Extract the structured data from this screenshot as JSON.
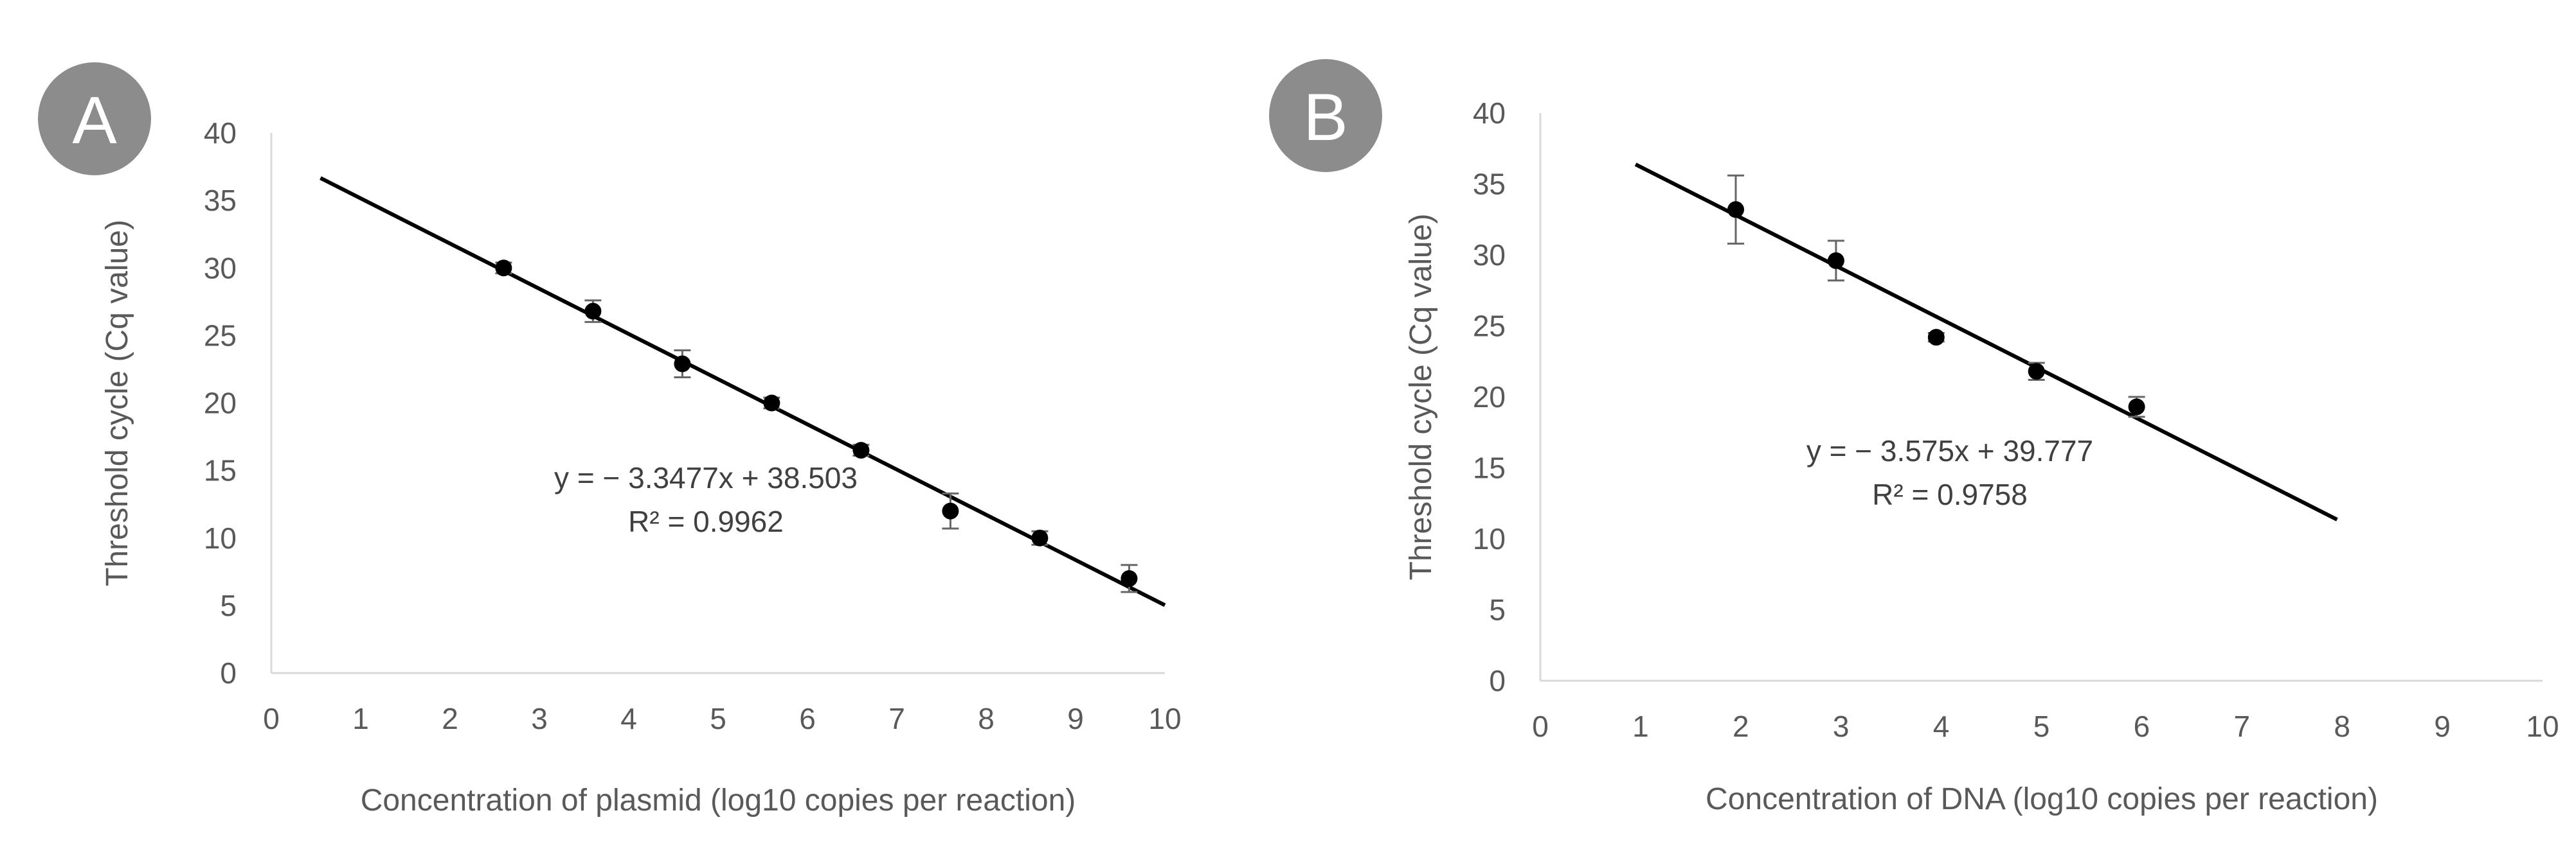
{
  "chart_data": [
    {
      "type": "scatter",
      "panel_label": "A",
      "xlabel": "Concentration of plasmid (log10 copies per reaction)",
      "ylabel": "Threshold cycle (Cq value)",
      "xlim": [
        0,
        10
      ],
      "ylim": [
        0,
        40
      ],
      "xticks": [
        "0",
        "1",
        "2",
        "3",
        "4",
        "5",
        "6",
        "7",
        "8",
        "9",
        "10"
      ],
      "yticks": [
        "0",
        "5",
        "10",
        "15",
        "20",
        "25",
        "30",
        "35",
        "40"
      ],
      "points": [
        {
          "x": 2.6,
          "y": 30.0,
          "err": 0.4
        },
        {
          "x": 3.6,
          "y": 26.8,
          "err": 0.8
        },
        {
          "x": 4.6,
          "y": 22.9,
          "err": 1.0
        },
        {
          "x": 5.6,
          "y": 20.0,
          "err": 0.4
        },
        {
          "x": 6.6,
          "y": 16.5,
          "err": 0.4
        },
        {
          "x": 7.6,
          "y": 12.0,
          "err": 1.3
        },
        {
          "x": 8.6,
          "y": 10.0,
          "err": 0.5
        },
        {
          "x": 9.6,
          "y": 7.0,
          "err": 1.0
        }
      ],
      "fit": {
        "slope": -3.3477,
        "intercept": 38.503,
        "x_start": 0.55,
        "x_end": 10
      },
      "equation": "y = − 3.3477x + 38.503",
      "r_squared": "R² = 0.9962"
    },
    {
      "type": "scatter",
      "panel_label": "B",
      "xlabel": "Concentration of DNA (log10 copies per reaction)",
      "ylabel": "Threshold cycle (Cq value)",
      "xlim": [
        0,
        10
      ],
      "ylim": [
        0,
        40
      ],
      "xticks": [
        "0",
        "1",
        "2",
        "3",
        "4",
        "5",
        "6",
        "7",
        "8",
        "9",
        "10"
      ],
      "yticks": [
        "0",
        "5",
        "10",
        "15",
        "20",
        "25",
        "30",
        "35",
        "40"
      ],
      "points": [
        {
          "x": 1.95,
          "y": 33.2,
          "err": 2.4
        },
        {
          "x": 2.95,
          "y": 29.6,
          "err": 1.4
        },
        {
          "x": 3.95,
          "y": 24.2,
          "err": 0.3
        },
        {
          "x": 4.95,
          "y": 21.8,
          "err": 0.6
        },
        {
          "x": 5.95,
          "y": 19.3,
          "err": 0.7
        }
      ],
      "fit": {
        "slope": -3.575,
        "intercept": 39.777,
        "x_start": 0.95,
        "x_end": 7.95
      },
      "equation": "y = − 3.575x + 39.777",
      "r_squared": "R² = 0.9758"
    }
  ]
}
